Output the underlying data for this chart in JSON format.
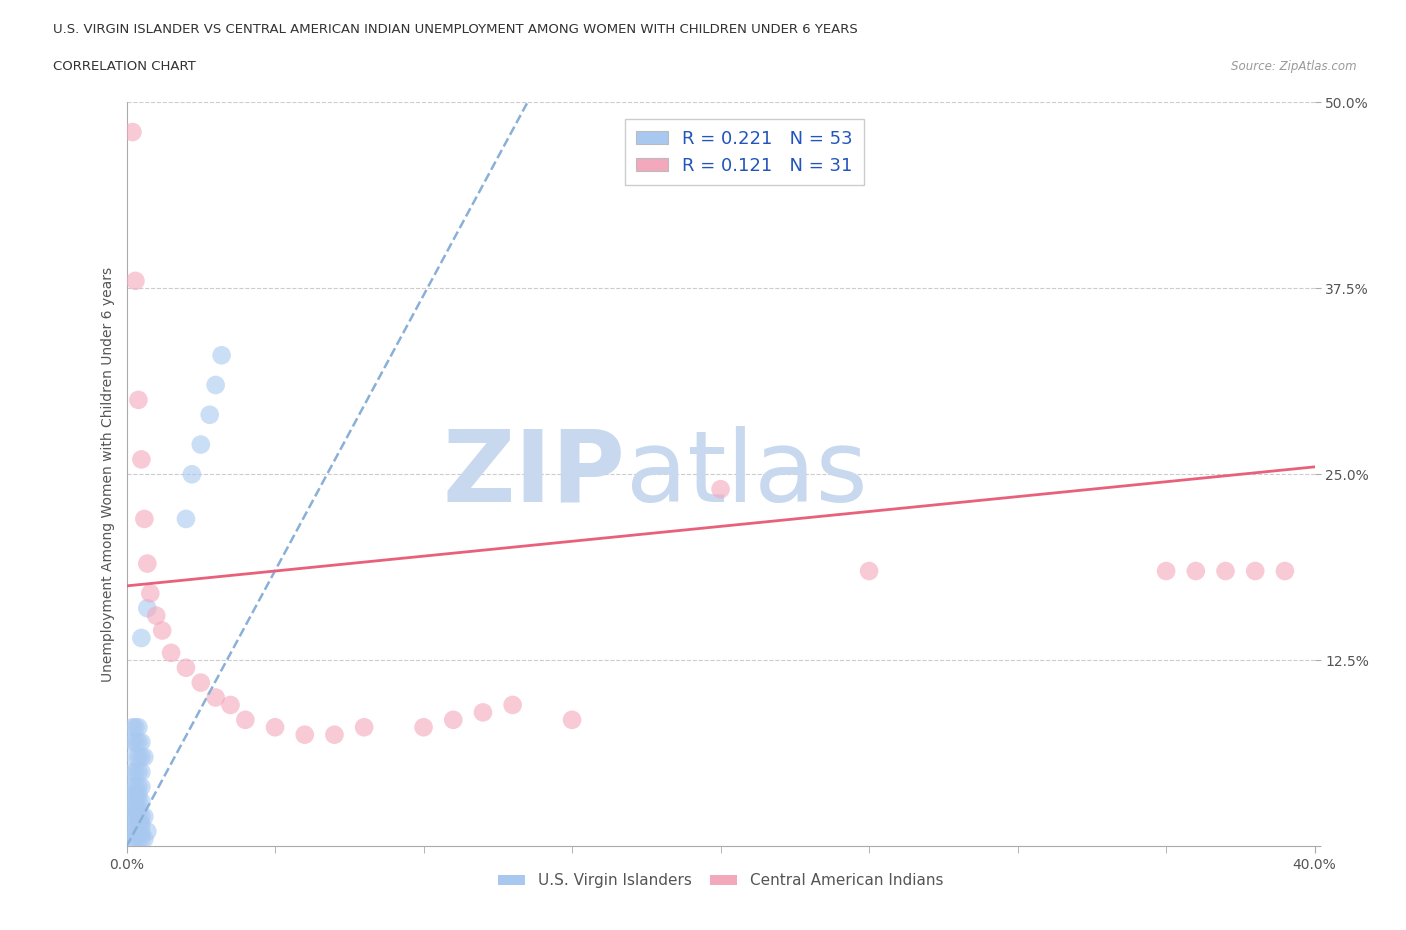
{
  "title_line1": "U.S. VIRGIN ISLANDER VS CENTRAL AMERICAN INDIAN UNEMPLOYMENT AMONG WOMEN WITH CHILDREN UNDER 6 YEARS",
  "title_line2": "CORRELATION CHART",
  "source": "Source: ZipAtlas.com",
  "ylabel": "Unemployment Among Women with Children Under 6 years",
  "xlim": [
    0,
    0.4
  ],
  "ylim": [
    0,
    0.5
  ],
  "blue_R": 0.221,
  "blue_N": 53,
  "pink_R": 0.121,
  "pink_N": 31,
  "blue_color": "#a8c8f0",
  "pink_color": "#f4a8bc",
  "blue_line_color": "#8ab0d8",
  "pink_line_color": "#e8607a",
  "grid_color": "#cccccc",
  "watermark_zip": "ZIP",
  "watermark_atlas": "atlas",
  "watermark_color_zip": "#c8d8ee",
  "watermark_color_atlas": "#c8d8ee",
  "blue_scatter_x": [
    0.002,
    0.003,
    0.004,
    0.005,
    0.006,
    0.002,
    0.003,
    0.005,
    0.007,
    0.003,
    0.004,
    0.005,
    0.002,
    0.003,
    0.004,
    0.005,
    0.006,
    0.002,
    0.003,
    0.004,
    0.002,
    0.003,
    0.004,
    0.005,
    0.003,
    0.004,
    0.002,
    0.003,
    0.004,
    0.005,
    0.002,
    0.003,
    0.004,
    0.005,
    0.003,
    0.004,
    0.005,
    0.006,
    0.002,
    0.003,
    0.004,
    0.005,
    0.002,
    0.003,
    0.004,
    0.02,
    0.022,
    0.025,
    0.028,
    0.03,
    0.032,
    0.005,
    0.007
  ],
  "blue_scatter_y": [
    0.005,
    0.005,
    0.005,
    0.005,
    0.005,
    0.01,
    0.01,
    0.01,
    0.01,
    0.015,
    0.015,
    0.015,
    0.02,
    0.02,
    0.02,
    0.02,
    0.02,
    0.025,
    0.025,
    0.025,
    0.03,
    0.03,
    0.03,
    0.03,
    0.035,
    0.035,
    0.04,
    0.04,
    0.04,
    0.04,
    0.05,
    0.05,
    0.05,
    0.05,
    0.06,
    0.06,
    0.06,
    0.06,
    0.07,
    0.07,
    0.07,
    0.07,
    0.08,
    0.08,
    0.08,
    0.22,
    0.25,
    0.27,
    0.29,
    0.31,
    0.33,
    0.14,
    0.16
  ],
  "pink_scatter_x": [
    0.002,
    0.003,
    0.004,
    0.005,
    0.006,
    0.007,
    0.008,
    0.01,
    0.012,
    0.015,
    0.02,
    0.025,
    0.03,
    0.035,
    0.04,
    0.05,
    0.06,
    0.07,
    0.08,
    0.1,
    0.11,
    0.12,
    0.13,
    0.35,
    0.36,
    0.37,
    0.38,
    0.39,
    0.25,
    0.2,
    0.15
  ],
  "pink_scatter_y": [
    0.48,
    0.38,
    0.3,
    0.26,
    0.22,
    0.19,
    0.17,
    0.155,
    0.145,
    0.13,
    0.12,
    0.11,
    0.1,
    0.095,
    0.085,
    0.08,
    0.075,
    0.075,
    0.08,
    0.08,
    0.085,
    0.09,
    0.095,
    0.185,
    0.185,
    0.185,
    0.185,
    0.185,
    0.185,
    0.24,
    0.085
  ],
  "blue_line_x": [
    0.0,
    0.135
  ],
  "blue_line_y": [
    0.0,
    0.5
  ],
  "pink_line_x": [
    0.0,
    0.4
  ],
  "pink_line_y": [
    0.175,
    0.255
  ]
}
